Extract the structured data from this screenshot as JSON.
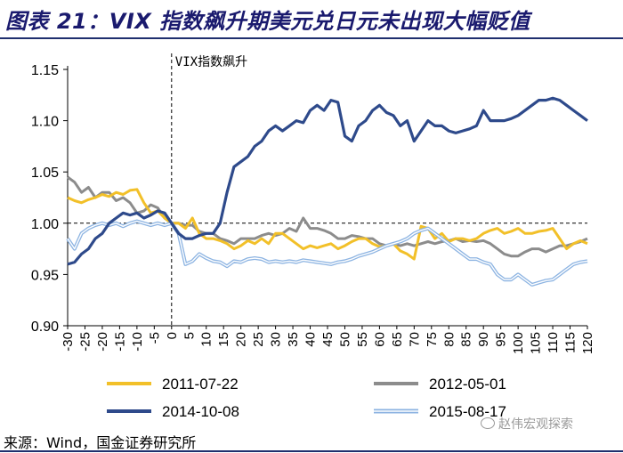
{
  "title": "图表 21：VIX 指数飙升期美元兑日元未出现大幅贬值",
  "source": "来源：Wind，国金证券研究所",
  "watermark": "赵伟宏观探索",
  "chart_data": {
    "type": "line",
    "annotation": "VIX指数飙升",
    "x_range": [
      -30,
      120
    ],
    "ylim": [
      0.9,
      1.15
    ],
    "y_ticks": [
      "0.90",
      "0.95",
      "1.00",
      "1.05",
      "1.10",
      "1.15"
    ],
    "x_ticks": [
      "-30",
      "-25",
      "-20",
      "-15",
      "-10",
      "-5",
      "0",
      "5",
      "10",
      "15",
      "20",
      "25",
      "30",
      "35",
      "40",
      "45",
      "50",
      "55",
      "60",
      "65",
      "70",
      "75",
      "80",
      "85",
      "90",
      "95",
      "100",
      "105",
      "110",
      "115",
      "120"
    ],
    "reference_y": 1.0,
    "event_x": 0,
    "series": [
      {
        "name": "2011-07-22",
        "color": "#F2C029",
        "x": [
          -30,
          -28,
          -26,
          -24,
          -22,
          -20,
          -18,
          -16,
          -14,
          -12,
          -10,
          -8,
          -6,
          -4,
          -2,
          0,
          2,
          4,
          6,
          8,
          10,
          12,
          14,
          16,
          18,
          20,
          22,
          24,
          26,
          28,
          30,
          32,
          34,
          36,
          38,
          40,
          42,
          44,
          46,
          48,
          50,
          52,
          54,
          56,
          58,
          60,
          62,
          64,
          66,
          68,
          70,
          72,
          74,
          76,
          78,
          80,
          82,
          84,
          86,
          88,
          90,
          92,
          94,
          96,
          98,
          100,
          102,
          104,
          106,
          108,
          110,
          112,
          114,
          116,
          118,
          120
        ],
        "y": [
          1.025,
          1.022,
          1.02,
          1.023,
          1.025,
          1.028,
          1.026,
          1.03,
          1.028,
          1.032,
          1.033,
          1.02,
          1.01,
          1.012,
          1.005,
          1.0,
          1.0,
          0.995,
          1.005,
          0.99,
          0.985,
          0.985,
          0.983,
          0.98,
          0.975,
          0.978,
          0.983,
          0.98,
          0.985,
          0.98,
          0.99,
          0.99,
          0.985,
          0.98,
          0.975,
          0.978,
          0.976,
          0.978,
          0.98,
          0.975,
          0.978,
          0.982,
          0.985,
          0.985,
          0.98,
          0.977,
          0.978,
          0.98,
          0.973,
          0.97,
          0.965,
          0.997,
          0.995,
          0.985,
          0.99,
          0.982,
          0.985,
          0.985,
          0.983,
          0.985,
          0.99,
          0.993,
          0.995,
          0.99,
          0.992,
          0.995,
          0.99,
          0.99,
          0.992,
          0.993,
          0.995,
          0.985,
          0.975,
          0.98,
          0.983,
          0.98
        ]
      },
      {
        "name": "2012-05-01",
        "color": "#8C8C8C",
        "x": [
          -30,
          -28,
          -26,
          -24,
          -22,
          -20,
          -18,
          -16,
          -14,
          -12,
          -10,
          -8,
          -6,
          -4,
          -2,
          0,
          2,
          4,
          6,
          8,
          10,
          12,
          14,
          16,
          18,
          20,
          22,
          24,
          26,
          28,
          30,
          32,
          34,
          36,
          38,
          40,
          42,
          44,
          46,
          48,
          50,
          52,
          54,
          56,
          58,
          60,
          62,
          64,
          66,
          68,
          70,
          72,
          74,
          76,
          78,
          80,
          82,
          84,
          86,
          88,
          90,
          92,
          94,
          96,
          98,
          100,
          102,
          104,
          106,
          108,
          110,
          112,
          114,
          116,
          118,
          120
        ],
        "y": [
          1.045,
          1.04,
          1.03,
          1.035,
          1.025,
          1.03,
          1.03,
          1.022,
          1.025,
          1.02,
          1.01,
          1.012,
          1.018,
          1.015,
          1.005,
          1.0,
          1.0,
          0.998,
          0.998,
          0.992,
          0.99,
          0.99,
          0.985,
          0.983,
          0.98,
          0.985,
          0.985,
          0.985,
          0.988,
          0.99,
          0.988,
          0.99,
          0.995,
          0.992,
          1.005,
          0.995,
          0.995,
          0.993,
          0.99,
          0.985,
          0.985,
          0.988,
          0.987,
          0.985,
          0.985,
          0.98,
          0.978,
          0.98,
          0.978,
          0.98,
          0.978,
          0.98,
          0.982,
          0.98,
          0.982,
          0.983,
          0.985,
          0.982,
          0.983,
          0.982,
          0.983,
          0.98,
          0.975,
          0.97,
          0.968,
          0.968,
          0.972,
          0.975,
          0.975,
          0.972,
          0.975,
          0.978,
          0.978,
          0.98,
          0.982,
          0.985
        ]
      },
      {
        "name": "2014-10-08",
        "color": "#2E4A8B",
        "x": [
          -30,
          -28,
          -26,
          -24,
          -22,
          -20,
          -18,
          -16,
          -14,
          -12,
          -10,
          -8,
          -6,
          -4,
          -2,
          0,
          2,
          4,
          6,
          8,
          10,
          12,
          14,
          16,
          18,
          20,
          22,
          24,
          26,
          28,
          30,
          32,
          34,
          36,
          38,
          40,
          42,
          44,
          46,
          48,
          50,
          52,
          54,
          56,
          58,
          60,
          62,
          64,
          66,
          68,
          70,
          72,
          74,
          76,
          78,
          80,
          82,
          84,
          86,
          88,
          90,
          92,
          94,
          96,
          98,
          100,
          102,
          104,
          106,
          108,
          110,
          112,
          114,
          116,
          118,
          120
        ],
        "y": [
          0.96,
          0.962,
          0.97,
          0.975,
          0.985,
          0.99,
          1.0,
          1.005,
          1.01,
          1.008,
          1.01,
          1.005,
          1.008,
          1.012,
          1.01,
          1.0,
          0.99,
          0.985,
          0.985,
          0.988,
          0.99,
          0.99,
          1.0,
          1.03,
          1.055,
          1.06,
          1.065,
          1.075,
          1.08,
          1.09,
          1.095,
          1.09,
          1.095,
          1.1,
          1.098,
          1.11,
          1.115,
          1.11,
          1.12,
          1.118,
          1.085,
          1.08,
          1.095,
          1.1,
          1.11,
          1.115,
          1.108,
          1.105,
          1.095,
          1.1,
          1.08,
          1.09,
          1.1,
          1.095,
          1.095,
          1.09,
          1.088,
          1.09,
          1.092,
          1.095,
          1.11,
          1.1,
          1.1,
          1.1,
          1.102,
          1.105,
          1.11,
          1.115,
          1.12,
          1.12,
          1.122,
          1.12,
          1.115,
          1.11,
          1.105,
          1.1
        ]
      },
      {
        "name": "2015-08-17",
        "color": "#8DB4E2",
        "x": [
          -30,
          -28,
          -26,
          -24,
          -22,
          -20,
          -18,
          -16,
          -14,
          -12,
          -10,
          -8,
          -6,
          -4,
          -2,
          0,
          2,
          4,
          6,
          8,
          10,
          12,
          14,
          16,
          18,
          20,
          22,
          24,
          26,
          28,
          30,
          32,
          34,
          36,
          38,
          40,
          42,
          44,
          46,
          48,
          50,
          52,
          54,
          56,
          58,
          60,
          62,
          64,
          66,
          68,
          70,
          72,
          74,
          76,
          78,
          80,
          82,
          84,
          86,
          88,
          90,
          92,
          94,
          96,
          98,
          100,
          102,
          104,
          106,
          108,
          110,
          112,
          114,
          116,
          118,
          120
        ],
        "y": [
          0.985,
          0.975,
          0.99,
          0.995,
          0.998,
          1.0,
          0.998,
          1.0,
          0.997,
          1.0,
          1.002,
          1.0,
          0.998,
          1.0,
          0.998,
          1.0,
          0.99,
          0.96,
          0.963,
          0.97,
          0.966,
          0.963,
          0.962,
          0.958,
          0.963,
          0.962,
          0.965,
          0.966,
          0.965,
          0.962,
          0.963,
          0.962,
          0.963,
          0.962,
          0.964,
          0.963,
          0.962,
          0.961,
          0.96,
          0.962,
          0.963,
          0.965,
          0.968,
          0.97,
          0.972,
          0.975,
          0.978,
          0.98,
          0.982,
          0.985,
          0.99,
          0.993,
          0.995,
          0.99,
          0.985,
          0.98,
          0.975,
          0.97,
          0.965,
          0.965,
          0.962,
          0.96,
          0.95,
          0.945,
          0.945,
          0.95,
          0.945,
          0.94,
          0.942,
          0.944,
          0.945,
          0.95,
          0.955,
          0.96,
          0.962,
          0.963
        ]
      }
    ]
  }
}
